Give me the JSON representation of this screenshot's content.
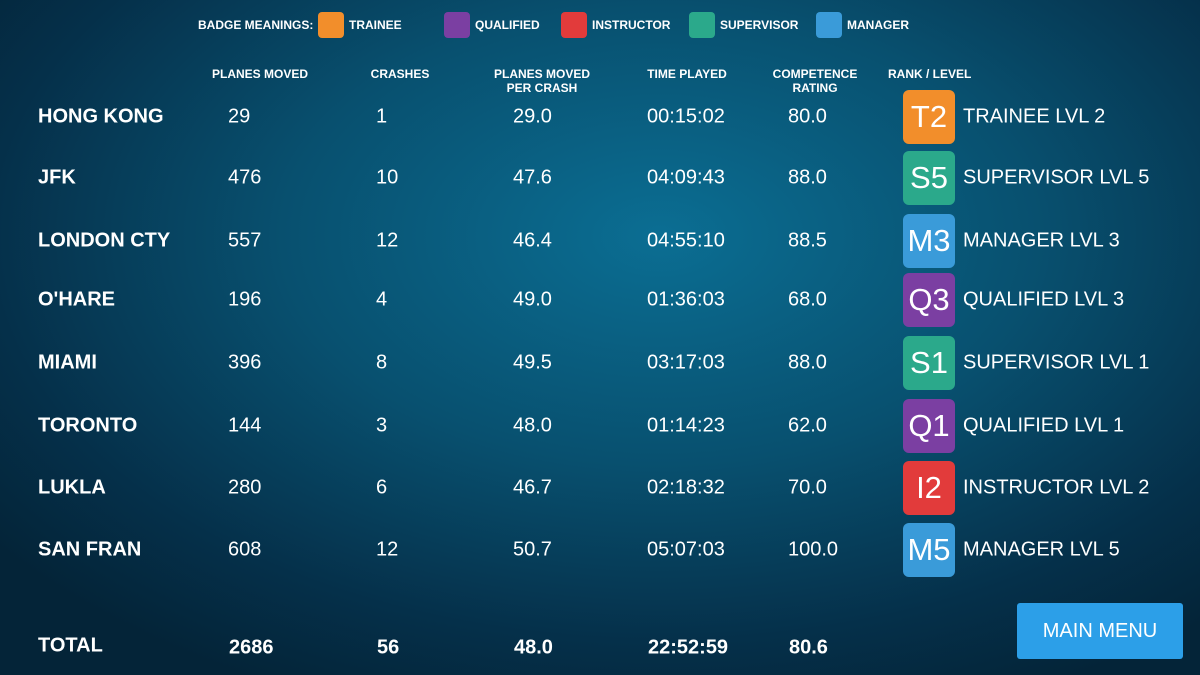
{
  "legend": {
    "title": "BADGE MEANINGS:",
    "badges": [
      {
        "label": "TRAINEE",
        "color": "#f28e2b"
      },
      {
        "label": "QUALIFIED",
        "color": "#7b3fa2"
      },
      {
        "label": "INSTRUCTOR",
        "color": "#e23b3b"
      },
      {
        "label": "SUPERVISOR",
        "color": "#2ba98b"
      },
      {
        "label": "MANAGER",
        "color": "#3a9bd9"
      }
    ]
  },
  "table": {
    "headers": [
      "PLANES MOVED",
      "CRASHES",
      "PLANES MOVED PER CRASH",
      "TIME PLAYED",
      "COMPETENCE RATING",
      "RANK / LEVEL"
    ],
    "rows": [
      {
        "airport": "HONG KONG",
        "cells": [
          "29",
          "1",
          "29.0",
          "00:15:02",
          "80.0"
        ],
        "badge": "T2",
        "badge_color": "#f28e2b",
        "rank": "TRAINEE LVL 2"
      },
      {
        "airport": "JFK",
        "cells": [
          "476",
          "10",
          "47.6",
          "04:09:43",
          "88.0"
        ],
        "badge": "S5",
        "badge_color": "#2ba98b",
        "rank": "SUPERVISOR LVL 5"
      },
      {
        "airport": "LONDON CTY",
        "cells": [
          "557",
          "12",
          "46.4",
          "04:55:10",
          "88.5"
        ],
        "badge": "M3",
        "badge_color": "#3a9bd9",
        "rank": "MANAGER LVL 3"
      },
      {
        "airport": "O'HARE",
        "cells": [
          "196",
          "4",
          "49.0",
          "01:36:03",
          "68.0"
        ],
        "badge": "Q3",
        "badge_color": "#7b3fa2",
        "rank": "QUALIFIED LVL 3"
      },
      {
        "airport": "MIAMI",
        "cells": [
          "396",
          "8",
          "49.5",
          "03:17:03",
          "88.0"
        ],
        "badge": "S1",
        "badge_color": "#2ba98b",
        "rank": "SUPERVISOR LVL 1"
      },
      {
        "airport": "TORONTO",
        "cells": [
          "144",
          "3",
          "48.0",
          "01:14:23",
          "62.0"
        ],
        "badge": "Q1",
        "badge_color": "#7b3fa2",
        "rank": "QUALIFIED LVL 1"
      },
      {
        "airport": "LUKLA",
        "cells": [
          "280",
          "6",
          "46.7",
          "02:18:32",
          "70.0"
        ],
        "badge": "I2",
        "badge_color": "#e23b3b",
        "rank": "INSTRUCTOR LVL 2"
      },
      {
        "airport": "SAN FRAN",
        "cells": [
          "608",
          "12",
          "50.7",
          "05:07:03",
          "100.0"
        ],
        "badge": "M5",
        "badge_color": "#3a9bd9",
        "rank": "MANAGER LVL 5"
      }
    ],
    "total": {
      "label": "TOTAL",
      "cells": [
        "2686",
        "56",
        "48.0",
        "22:52:59",
        "80.6"
      ]
    }
  },
  "button": {
    "label": "MAIN MENU"
  }
}
